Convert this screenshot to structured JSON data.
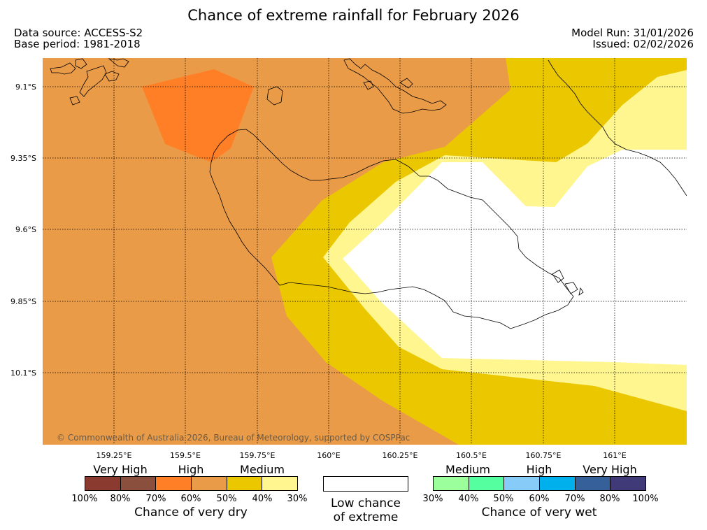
{
  "title": "Chance of extreme rainfall for February 2026",
  "data_source": "Data source: ACCESS-S2",
  "base_period": "Base period: 1981-2018",
  "model_run": "Model Run: 31/01/2026",
  "issued": "Issued: 02/02/2026",
  "copyright": "© Commonwealth of Australia 2026, Bureau of Meteorology, supported by COSPPac",
  "latitude_labels": [
    "9.1°S",
    "9.35°S",
    "9.6°S",
    "9.85°S",
    "10.1°S"
  ],
  "longitude_labels": [
    "159.25°E",
    "159.5°E",
    "159.75°E",
    "160°E",
    "160.25°E",
    "160.5°E",
    "160.75°E",
    "161°E"
  ],
  "colors": {
    "dry_very_high_1": "#8b3a2f",
    "dry_very_high_2": "#8b4f3d",
    "dry_high_1": "#ff7f27",
    "dry_high_2": "#ea9b47",
    "dry_medium_1": "#ebc700",
    "dry_medium_2": "#fff68f",
    "wet_medium_1": "#9bff9b",
    "wet_medium_2": "#55ff9f",
    "wet_high_1": "#87cbf9",
    "wet_high_2": "#00b0ec",
    "wet_very_high_1": "#35609a",
    "wet_very_high_2": "#403a78",
    "low_chance": "#ffffff"
  },
  "legend": {
    "dry": {
      "categories": [
        "Very High",
        "High",
        "Medium"
      ],
      "ticks": [
        "100%",
        "80%",
        "70%",
        "60%",
        "50%",
        "40%",
        "30%"
      ],
      "title": "Chance of very dry"
    },
    "neutral": {
      "line1": "Low chance",
      "line2": "of extreme"
    },
    "wet": {
      "categories": [
        "Medium",
        "High",
        "Very High"
      ],
      "ticks": [
        "30%",
        "40%",
        "50%",
        "60%",
        "70%",
        "80%",
        "100%"
      ],
      "title": "Chance of very wet"
    }
  }
}
